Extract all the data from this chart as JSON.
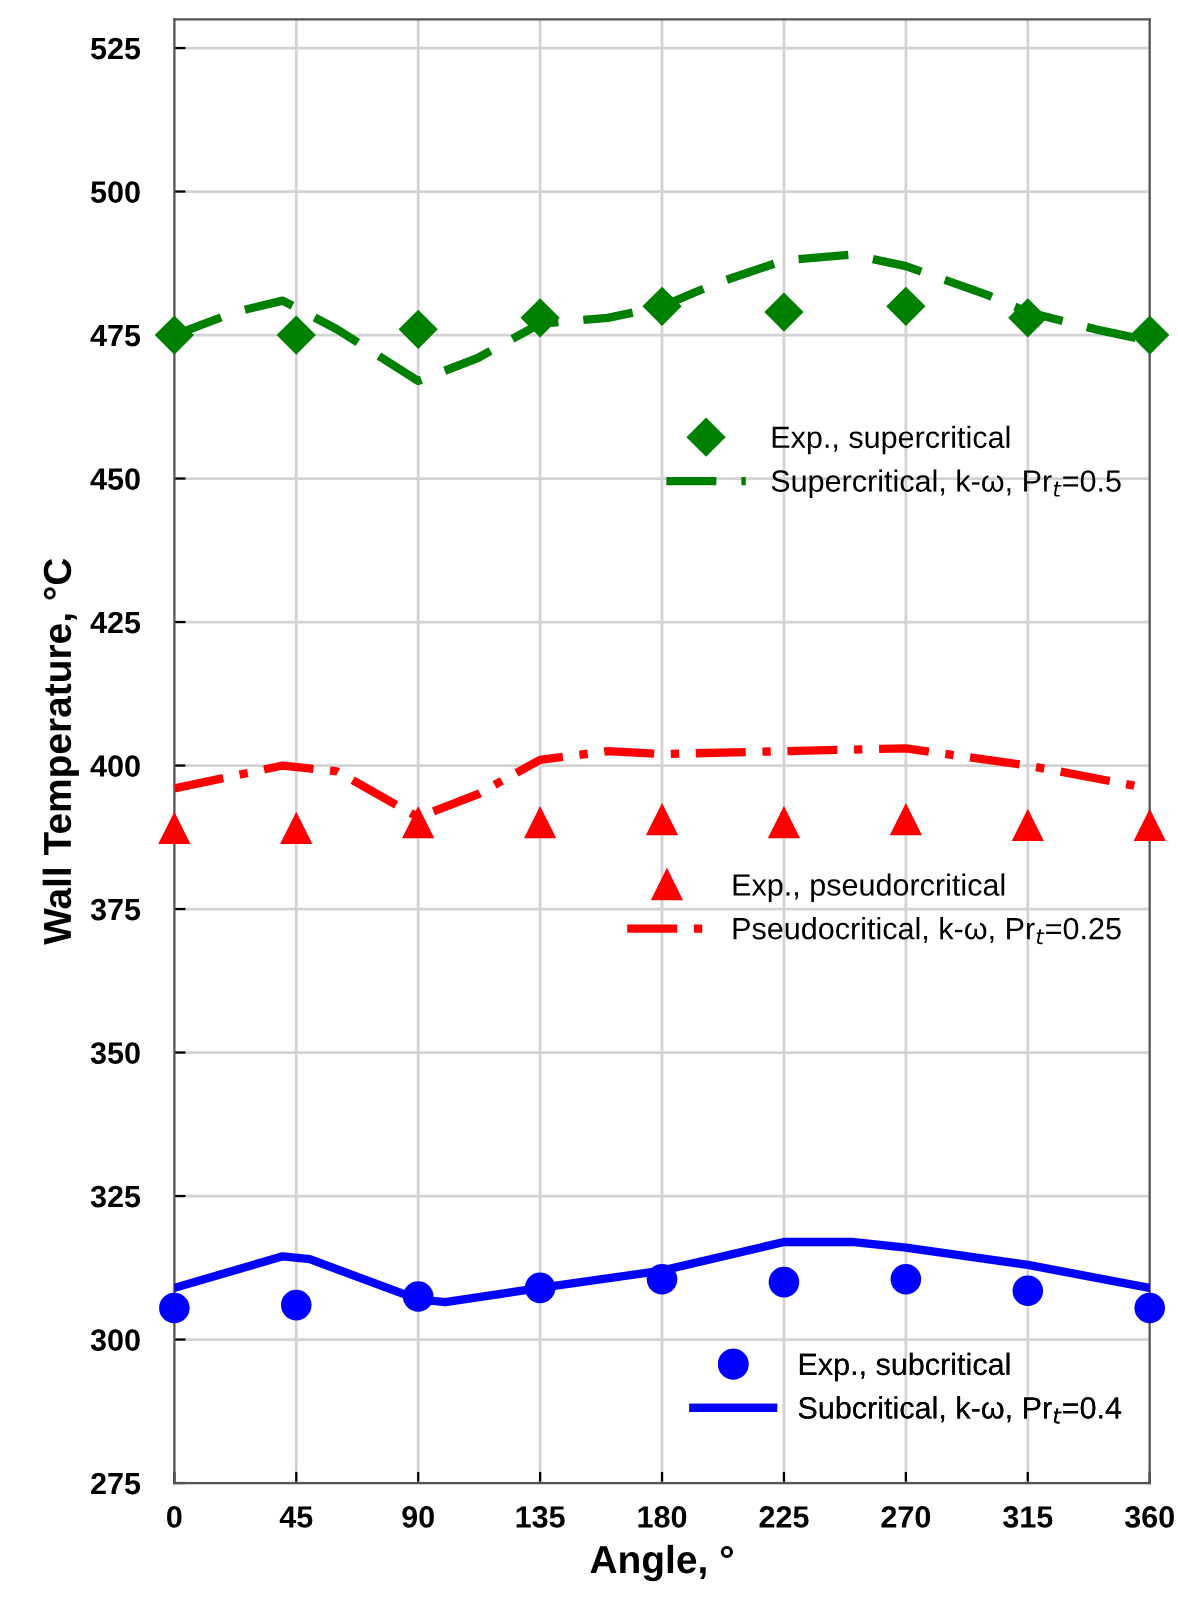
{
  "chart_data": {
    "type": "line",
    "xlabel": "Angle, °",
    "ylabel": "Wall Temperature, °C",
    "xlim": [
      0,
      360
    ],
    "xticks": [
      0,
      45,
      90,
      135,
      180,
      225,
      270,
      315,
      360
    ],
    "ylim": [
      275,
      530
    ],
    "yticks": [
      275,
      300,
      325,
      350,
      375,
      400,
      425,
      450,
      475,
      500,
      525
    ],
    "grid": true,
    "legend": "right",
    "series": [
      {
        "name": "Exp., supercritical",
        "type": "scatter",
        "marker": "diamond",
        "color": "#008000",
        "x": [
          0,
          45,
          90,
          135,
          180,
          225,
          270,
          315,
          360
        ],
        "values": [
          475,
          475,
          476,
          478,
          480,
          479,
          480,
          478,
          475
        ]
      },
      {
        "name": "Supercritical, k-ω, Pr$_{t}$=0.5",
        "line_style": "dashed",
        "color": "#008000",
        "x": [
          0,
          22.5,
          40,
          60,
          90,
          112,
          135,
          160,
          180,
          200,
          225,
          250,
          270,
          300,
          315,
          340,
          360
        ],
        "values": [
          475,
          479,
          481,
          476,
          467,
          471,
          477,
          478,
          480,
          484,
          488,
          489,
          487,
          482,
          479,
          476,
          474
        ]
      },
      {
        "name": "Exp., pseudorcritical",
        "type": "scatter",
        "marker": "triangle",
        "color": "#ff0000",
        "x": [
          0,
          45,
          90,
          135,
          180,
          225,
          270,
          315,
          360
        ],
        "values": [
          389,
          389,
          390,
          390,
          390.5,
          390,
          390.5,
          389.5,
          389.5
        ]
      },
      {
        "name": "Pseudocritical, k-ω, Pr$_{t}$=0.25",
        "line_style": "dashdot",
        "color": "#ff0000",
        "x": [
          0,
          40,
          60,
          90,
          112,
          135,
          160,
          180,
          225,
          270,
          315,
          360
        ],
        "values": [
          396,
          400,
          399,
          391,
          395,
          401,
          402.5,
          402,
          402.5,
          403,
          400,
          396
        ]
      },
      {
        "name": "Exp., subcritical",
        "type": "scatter",
        "marker": "circle",
        "color": "#0000ff",
        "x": [
          0,
          45,
          90,
          135,
          180,
          225,
          270,
          315,
          360
        ],
        "values": [
          305.5,
          306,
          307.5,
          309,
          310.5,
          310,
          310.5,
          308.5,
          305.5
        ]
      },
      {
        "name": "Subcritical, k-ω, Pr$_{t}$=0.4",
        "line_style": "solid",
        "color": "#0000ff",
        "x": [
          0,
          40,
          50,
          90,
          100,
          135,
          180,
          225,
          250,
          270,
          315,
          360
        ],
        "values": [
          309,
          314.5,
          314,
          307,
          306.5,
          309,
          312,
          317,
          317,
          316,
          313,
          309
        ]
      }
    ]
  }
}
